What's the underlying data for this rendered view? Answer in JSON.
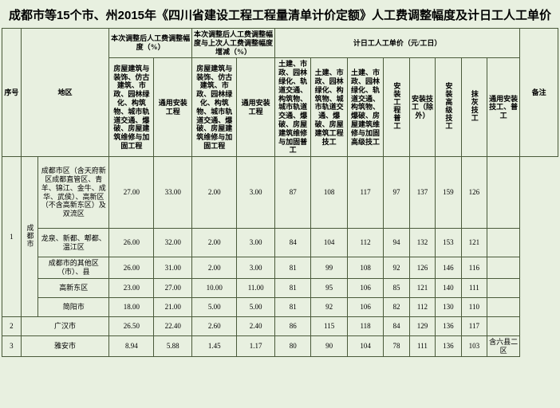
{
  "title": "成都市等15个市、州2015年《四川省建设工程工程量清单计价定额》人工费调整幅度及计日工人工单价",
  "headers": {
    "seq": "序号",
    "region": "地区",
    "group1": "本次调整后人工费调整幅度（%）",
    "group2": "本次调整后人工费调整幅度与上次人工费调整幅度增减（%）",
    "group3": "计日工人工单价（元/工日）",
    "remark": "备注",
    "g1c1": "房屋建筑与装饰、仿古建筑、市政、园林绿化、构筑物、城市轨道交通、爆破、房屋建筑维修与加固工程",
    "g1c2": "通用安装工程",
    "g2c1": "房屋建筑与装饰、仿古建筑、市政、园林绿化、构筑物、城市轨道交通、爆破、房屋建筑维修与加固工程",
    "g2c2": "通用安装工程",
    "g3c1": "土建、市政、园林绿化、轨道交通、构筑物、城市轨道交通、爆破、房屋建筑维修与加固普工",
    "g3c2": "土建、市政、园林绿化、构筑物、城市轨道交通、爆破、房屋建筑工程技工",
    "g3c3": "土建、市政、园林绿化、轨道交通、构筑物、爆破、房屋建筑维修与加固高级技工",
    "g3c4": "安装工程普工",
    "g3c5": "安装技工（除外）",
    "g3c6": "安装高级技工",
    "g3c7": "抹灰技工",
    "g3c8": "通用安装技工、普工"
  },
  "rows": [
    {
      "seq": "1",
      "grp": "成都市",
      "region": "成都市区（含天府新区成都直管区、青羊、锦江、金牛、成华、武侯）、高新区（不含高新东区）及双流区",
      "v": [
        "27.00",
        "33.00",
        "2.00",
        "3.00",
        "87",
        "108",
        "117",
        "97",
        "137",
        "159",
        "126",
        ""
      ]
    },
    {
      "region": "龙泉、新都、郫都、温江区",
      "v": [
        "26.00",
        "32.00",
        "2.00",
        "3.00",
        "84",
        "104",
        "112",
        "94",
        "132",
        "153",
        "121",
        ""
      ]
    },
    {
      "region": "成都市的其他区（市）、县",
      "v": [
        "26.00",
        "31.00",
        "2.00",
        "3.00",
        "81",
        "99",
        "108",
        "92",
        "126",
        "146",
        "116",
        ""
      ]
    },
    {
      "region": "高新东区",
      "v": [
        "23.00",
        "27.00",
        "10.00",
        "11.00",
        "81",
        "95",
        "106",
        "85",
        "121",
        "140",
        "111",
        ""
      ]
    },
    {
      "region": "简阳市",
      "v": [
        "18.00",
        "21.00",
        "5.00",
        "5.00",
        "81",
        "92",
        "106",
        "82",
        "112",
        "130",
        "110",
        ""
      ]
    },
    {
      "seq": "2",
      "region": "广汉市",
      "v": [
        "26.50",
        "22.40",
        "2.60",
        "2.40",
        "86",
        "115",
        "118",
        "84",
        "129",
        "136",
        "117",
        ""
      ]
    },
    {
      "seq": "3",
      "region": "雅安市",
      "v": [
        "8.94",
        "5.88",
        "1.45",
        "1.17",
        "80",
        "90",
        "104",
        "78",
        "111",
        "136",
        "103",
        "含六县二区"
      ]
    }
  ]
}
